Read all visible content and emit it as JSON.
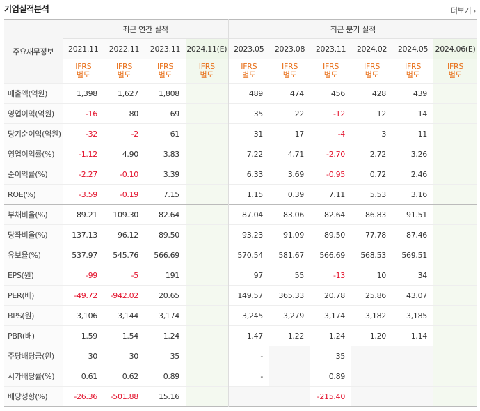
{
  "title": "기업실적분석",
  "more_label": "더보기",
  "header": {
    "label_col": "주요재무정보",
    "annual_group": "최근 연간 실적",
    "quarter_group": "최근 분기 실적",
    "annual_periods": [
      "2021.11",
      "2022.11",
      "2023.11",
      "2024.11(E)"
    ],
    "quarter_periods": [
      "2023.05",
      "2023.08",
      "2023.11",
      "2024.02",
      "2024.05",
      "2024.06(E)"
    ],
    "basis_top": "IFRS",
    "basis_bottom": "별도"
  },
  "rows": [
    {
      "label": "매출액(억원)",
      "annual": [
        "1,398",
        "1,627",
        "1,808",
        ""
      ],
      "quarter": [
        "489",
        "474",
        "456",
        "428",
        "439",
        ""
      ]
    },
    {
      "label": "영업이익(억원)",
      "annual": [
        "-16",
        "80",
        "69",
        ""
      ],
      "quarter": [
        "35",
        "22",
        "-12",
        "12",
        "14",
        ""
      ]
    },
    {
      "label": "당기순이익(억원)",
      "annual": [
        "-32",
        "-2",
        "61",
        ""
      ],
      "quarter": [
        "31",
        "17",
        "-4",
        "3",
        "11",
        ""
      ]
    },
    {
      "label": "영업이익률(%)",
      "annual": [
        "-1.12",
        "4.90",
        "3.83",
        ""
      ],
      "quarter": [
        "7.22",
        "4.71",
        "-2.70",
        "2.72",
        "3.26",
        ""
      ]
    },
    {
      "label": "순이익률(%)",
      "annual": [
        "-2.27",
        "-0.10",
        "3.39",
        ""
      ],
      "quarter": [
        "6.33",
        "3.69",
        "-0.95",
        "0.72",
        "2.46",
        ""
      ]
    },
    {
      "label": "ROE(%)",
      "annual": [
        "-3.59",
        "-0.19",
        "7.15",
        ""
      ],
      "quarter": [
        "1.15",
        "0.39",
        "7.11",
        "5.53",
        "3.16",
        ""
      ]
    },
    {
      "label": "부채비율(%)",
      "annual": [
        "89.21",
        "109.30",
        "82.64",
        ""
      ],
      "quarter": [
        "87.04",
        "83.06",
        "82.64",
        "86.83",
        "91.51",
        ""
      ]
    },
    {
      "label": "당좌비율(%)",
      "annual": [
        "137.13",
        "96.12",
        "89.50",
        ""
      ],
      "quarter": [
        "93.23",
        "91.09",
        "89.50",
        "77.78",
        "87.46",
        ""
      ]
    },
    {
      "label": "유보율(%)",
      "annual": [
        "537.97",
        "545.76",
        "566.69",
        ""
      ],
      "quarter": [
        "570.54",
        "581.67",
        "566.69",
        "568.53",
        "569.51",
        ""
      ]
    },
    {
      "label": "EPS(원)",
      "annual": [
        "-99",
        "-5",
        "191",
        ""
      ],
      "quarter": [
        "97",
        "55",
        "-13",
        "10",
        "34",
        ""
      ]
    },
    {
      "label": "PER(배)",
      "annual": [
        "-49.72",
        "-942.02",
        "20.65",
        ""
      ],
      "quarter": [
        "149.57",
        "365.33",
        "20.78",
        "25.86",
        "43.07",
        ""
      ]
    },
    {
      "label": "BPS(원)",
      "annual": [
        "3,106",
        "3,144",
        "3,174",
        ""
      ],
      "quarter": [
        "3,245",
        "3,279",
        "3,174",
        "3,182",
        "3,185",
        ""
      ]
    },
    {
      "label": "PBR(배)",
      "annual": [
        "1.59",
        "1.54",
        "1.24",
        ""
      ],
      "quarter": [
        "1.47",
        "1.22",
        "1.24",
        "1.20",
        "1.14",
        ""
      ]
    },
    {
      "label": "주당배당금(원)",
      "annual": [
        "30",
        "30",
        "35",
        ""
      ],
      "quarter": [
        "-",
        "",
        "35",
        "",
        "",
        ""
      ]
    },
    {
      "label": "시가배당률(%)",
      "annual": [
        "0.61",
        "0.62",
        "0.89",
        ""
      ],
      "quarter": [
        "-",
        "",
        "0.89",
        "",
        "",
        ""
      ]
    },
    {
      "label": "배당성향(%)",
      "annual": [
        "-26.36",
        "-501.88",
        "15.16",
        ""
      ],
      "quarter": [
        "",
        "",
        "-215.40",
        "",
        "",
        ""
      ]
    }
  ],
  "group_breaks": [
    3,
    6,
    9,
    13
  ],
  "blank_quarter_rows": [
    13,
    14,
    15
  ],
  "colors": {
    "negative": "#e3122c",
    "basis": "#e8701a",
    "estimate_bg": "#f4f9f0"
  }
}
